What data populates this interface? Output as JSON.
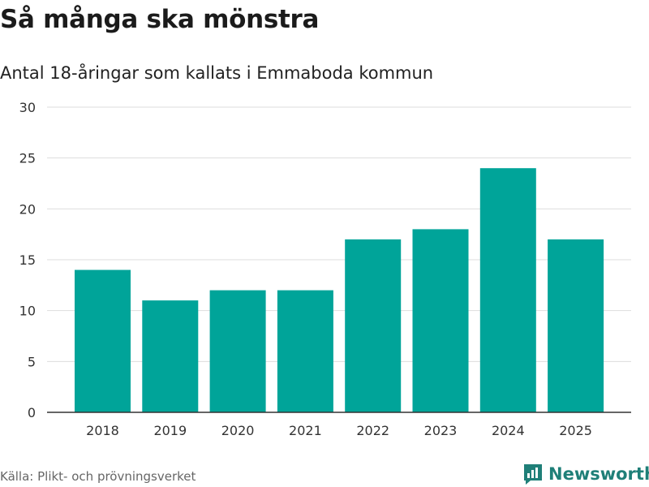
{
  "title": "Så många ska mönstra",
  "subtitle": "Antal 18-åringar som kallats i Emmaboda kommun",
  "source": "Källa: Plikt- och prövningsverket",
  "brand": "Newsworthy",
  "colors": {
    "bar": "#00a499",
    "brand": "#1f7f78",
    "grid": "#dddddd",
    "axis": "#333333"
  },
  "chart_data": {
    "type": "bar",
    "categories": [
      "2018",
      "2019",
      "2020",
      "2021",
      "2022",
      "2023",
      "2024",
      "2025"
    ],
    "values": [
      14,
      11,
      12,
      12,
      17,
      18,
      24,
      17
    ],
    "ylim": [
      0,
      30
    ],
    "yticks": [
      "0",
      "5",
      "10",
      "15",
      "20",
      "25",
      "30"
    ],
    "grid": true
  }
}
